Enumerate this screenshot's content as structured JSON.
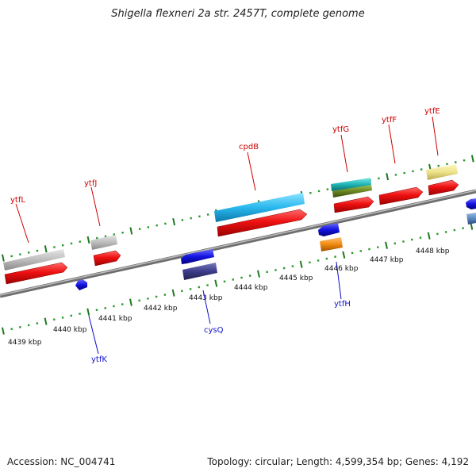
{
  "title": "Shigella flexneri 2a str. 2457T, complete genome",
  "footer": {
    "accession": "Accession: NC_004741",
    "summary": "Topology: circular; Length: 4,599,354 bp; Genes: 4,192"
  },
  "colors": {
    "axis": "#8a8a8a",
    "tick": "#1e7a1e",
    "dot": "#2a9a2a",
    "label_top": "#d10000",
    "label_bottom": "#1010cc",
    "red_gene": "#ee1111",
    "grey_gene": "#bdbdbd",
    "blue_gene": "#1414e0",
    "navy_gene": "#3c3c8c",
    "cyan_gene": "#2ab8ee",
    "teal_gene": "#1fb5b5",
    "olive_gene": "#6d8a22",
    "orange_gene": "#f08a10",
    "khaki_gene": "#eee28a",
    "steel_gene": "#5a88c0"
  },
  "kbp_labels": [
    "4439 kbp",
    "4440 kbp",
    "4441 kbp",
    "4442 kbp",
    "4443 kbp",
    "4444 kbp",
    "4445 kbp",
    "4446 kbp",
    "4447 kbp",
    "4448 kbp"
  ],
  "genes_top": [
    {
      "name": "ytfL",
      "icon": "gene-label"
    },
    {
      "name": "ytfJ",
      "icon": "gene-label"
    },
    {
      "name": "cpdB",
      "icon": "gene-label"
    },
    {
      "name": "ytfG",
      "icon": "gene-label"
    },
    {
      "name": "ytfF",
      "icon": "gene-label"
    },
    {
      "name": "ytfE",
      "icon": "gene-label"
    }
  ],
  "genes_bottom": [
    {
      "name": "ytfK",
      "icon": "gene-label"
    },
    {
      "name": "cysQ",
      "icon": "gene-label"
    },
    {
      "name": "ytfH",
      "icon": "gene-label"
    }
  ]
}
